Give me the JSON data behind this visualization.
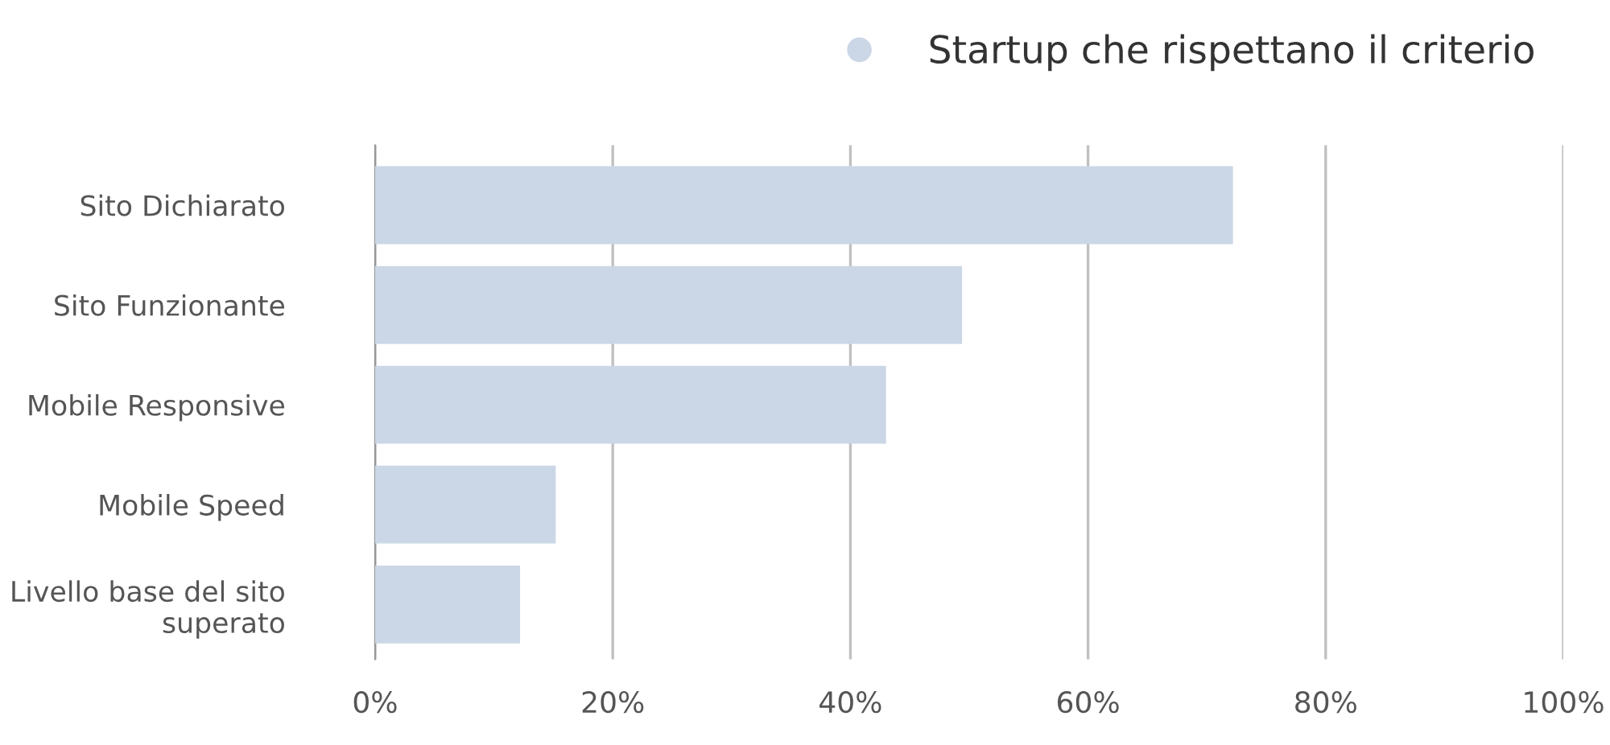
{
  "chart_data": {
    "type": "bar",
    "orientation": "horizontal",
    "categories": [
      "Sito Dichiarato",
      "Sito Funzionante",
      "Mobile Responsive",
      "Mobile Speed",
      "Livello base del sito\nsuperato"
    ],
    "series": [
      {
        "name": "Startup che rispettano il criterio",
        "color": "#cbd7e6",
        "values": [
          72.2,
          49.4,
          43,
          15.2,
          12.2
        ]
      }
    ],
    "xlim": [
      0,
      100
    ],
    "xticks": [
      {
        "value": 0,
        "label": "0%"
      },
      {
        "value": 20,
        "label": "20%"
      },
      {
        "value": 40,
        "label": "40%"
      },
      {
        "value": 60,
        "label": "60%"
      },
      {
        "value": 80,
        "label": "80%"
      },
      {
        "value": 100,
        "label": "100%"
      }
    ],
    "grid": "x",
    "legend": "top right"
  }
}
